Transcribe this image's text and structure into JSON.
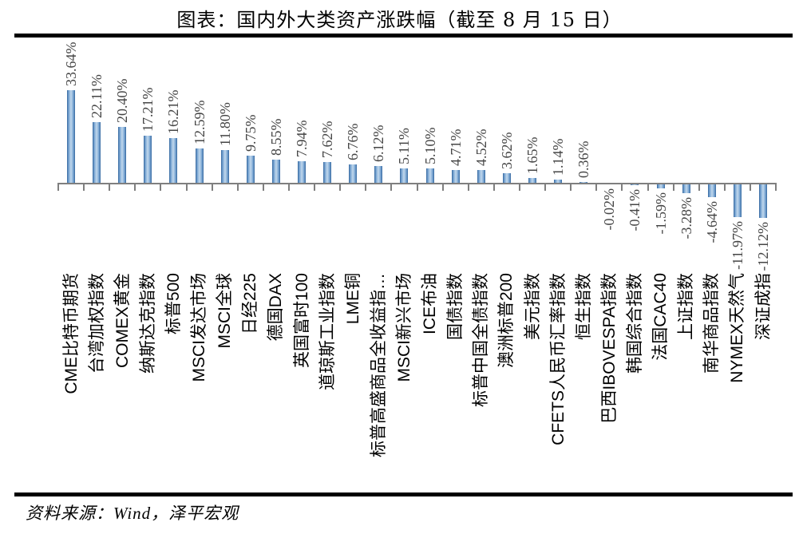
{
  "header": {
    "title": "图表：国内外大类资产涨跌幅（截至 8 月 15 日）"
  },
  "footer": {
    "source": "资料来源：Wind，泽平宏观"
  },
  "chart_data": {
    "type": "bar",
    "title": "图表：国内外大类资产涨跌幅（截至 8 月 15 日）",
    "unit": "%",
    "categories": [
      "CME比特币期货",
      "台湾加权指数",
      "COMEX黄金",
      "纳斯达克指数",
      "标普500",
      "MSCI发达市场",
      "MSCI全球",
      "日经225",
      "德国DAX",
      "英国富时100",
      "道琼斯工业指数",
      "LME铜",
      "标普高盛商品全收益指…",
      "MSCI新兴市场",
      "ICE布油",
      "国债指数",
      "标普中国全债指数",
      "澳洲标普200",
      "美元指数",
      "CFETS人民币汇率指数",
      "恒生指数",
      "巴西IBOVESPA指数",
      "韩国综合指数",
      "法国CAC40",
      "上证指数",
      "南华商品指数",
      "NYMEX天然气",
      "深证成指"
    ],
    "values": [
      33.64,
      22.11,
      20.4,
      17.21,
      16.21,
      12.59,
      11.8,
      9.75,
      8.55,
      7.94,
      7.62,
      6.76,
      6.12,
      5.11,
      5.1,
      4.71,
      4.52,
      3.62,
      1.65,
      1.14,
      0.36,
      -0.02,
      -0.41,
      -1.59,
      -3.28,
      -4.64,
      -11.97,
      -12.12
    ],
    "data_labels": [
      "33.64%",
      "22.11%",
      "20.40%",
      "17.21%",
      "16.21%",
      "12.59%",
      "11.80%",
      "9.75%",
      "8.55%",
      "7.94%",
      "7.62%",
      "6.76%",
      "6.12%",
      "5.11%",
      "5.10%",
      "4.71%",
      "4.52%",
      "3.62%",
      "1.65%",
      "1.14%",
      "0.36%",
      "-0.02%",
      "-0.41%",
      "-1.59%",
      "-3.28%",
      "-4.64%",
      "-11.97%",
      "-12.12%"
    ],
    "xlabel": "",
    "ylabel": "",
    "ylim": [
      -13,
      35
    ],
    "grid": false,
    "legend": false,
    "bar_color_edge": "#35689f",
    "bar_color_center": "#c2d8ec",
    "axis_color": "#7f7f7f",
    "data_label_color": "#454545",
    "category_label_color": "#000000"
  }
}
